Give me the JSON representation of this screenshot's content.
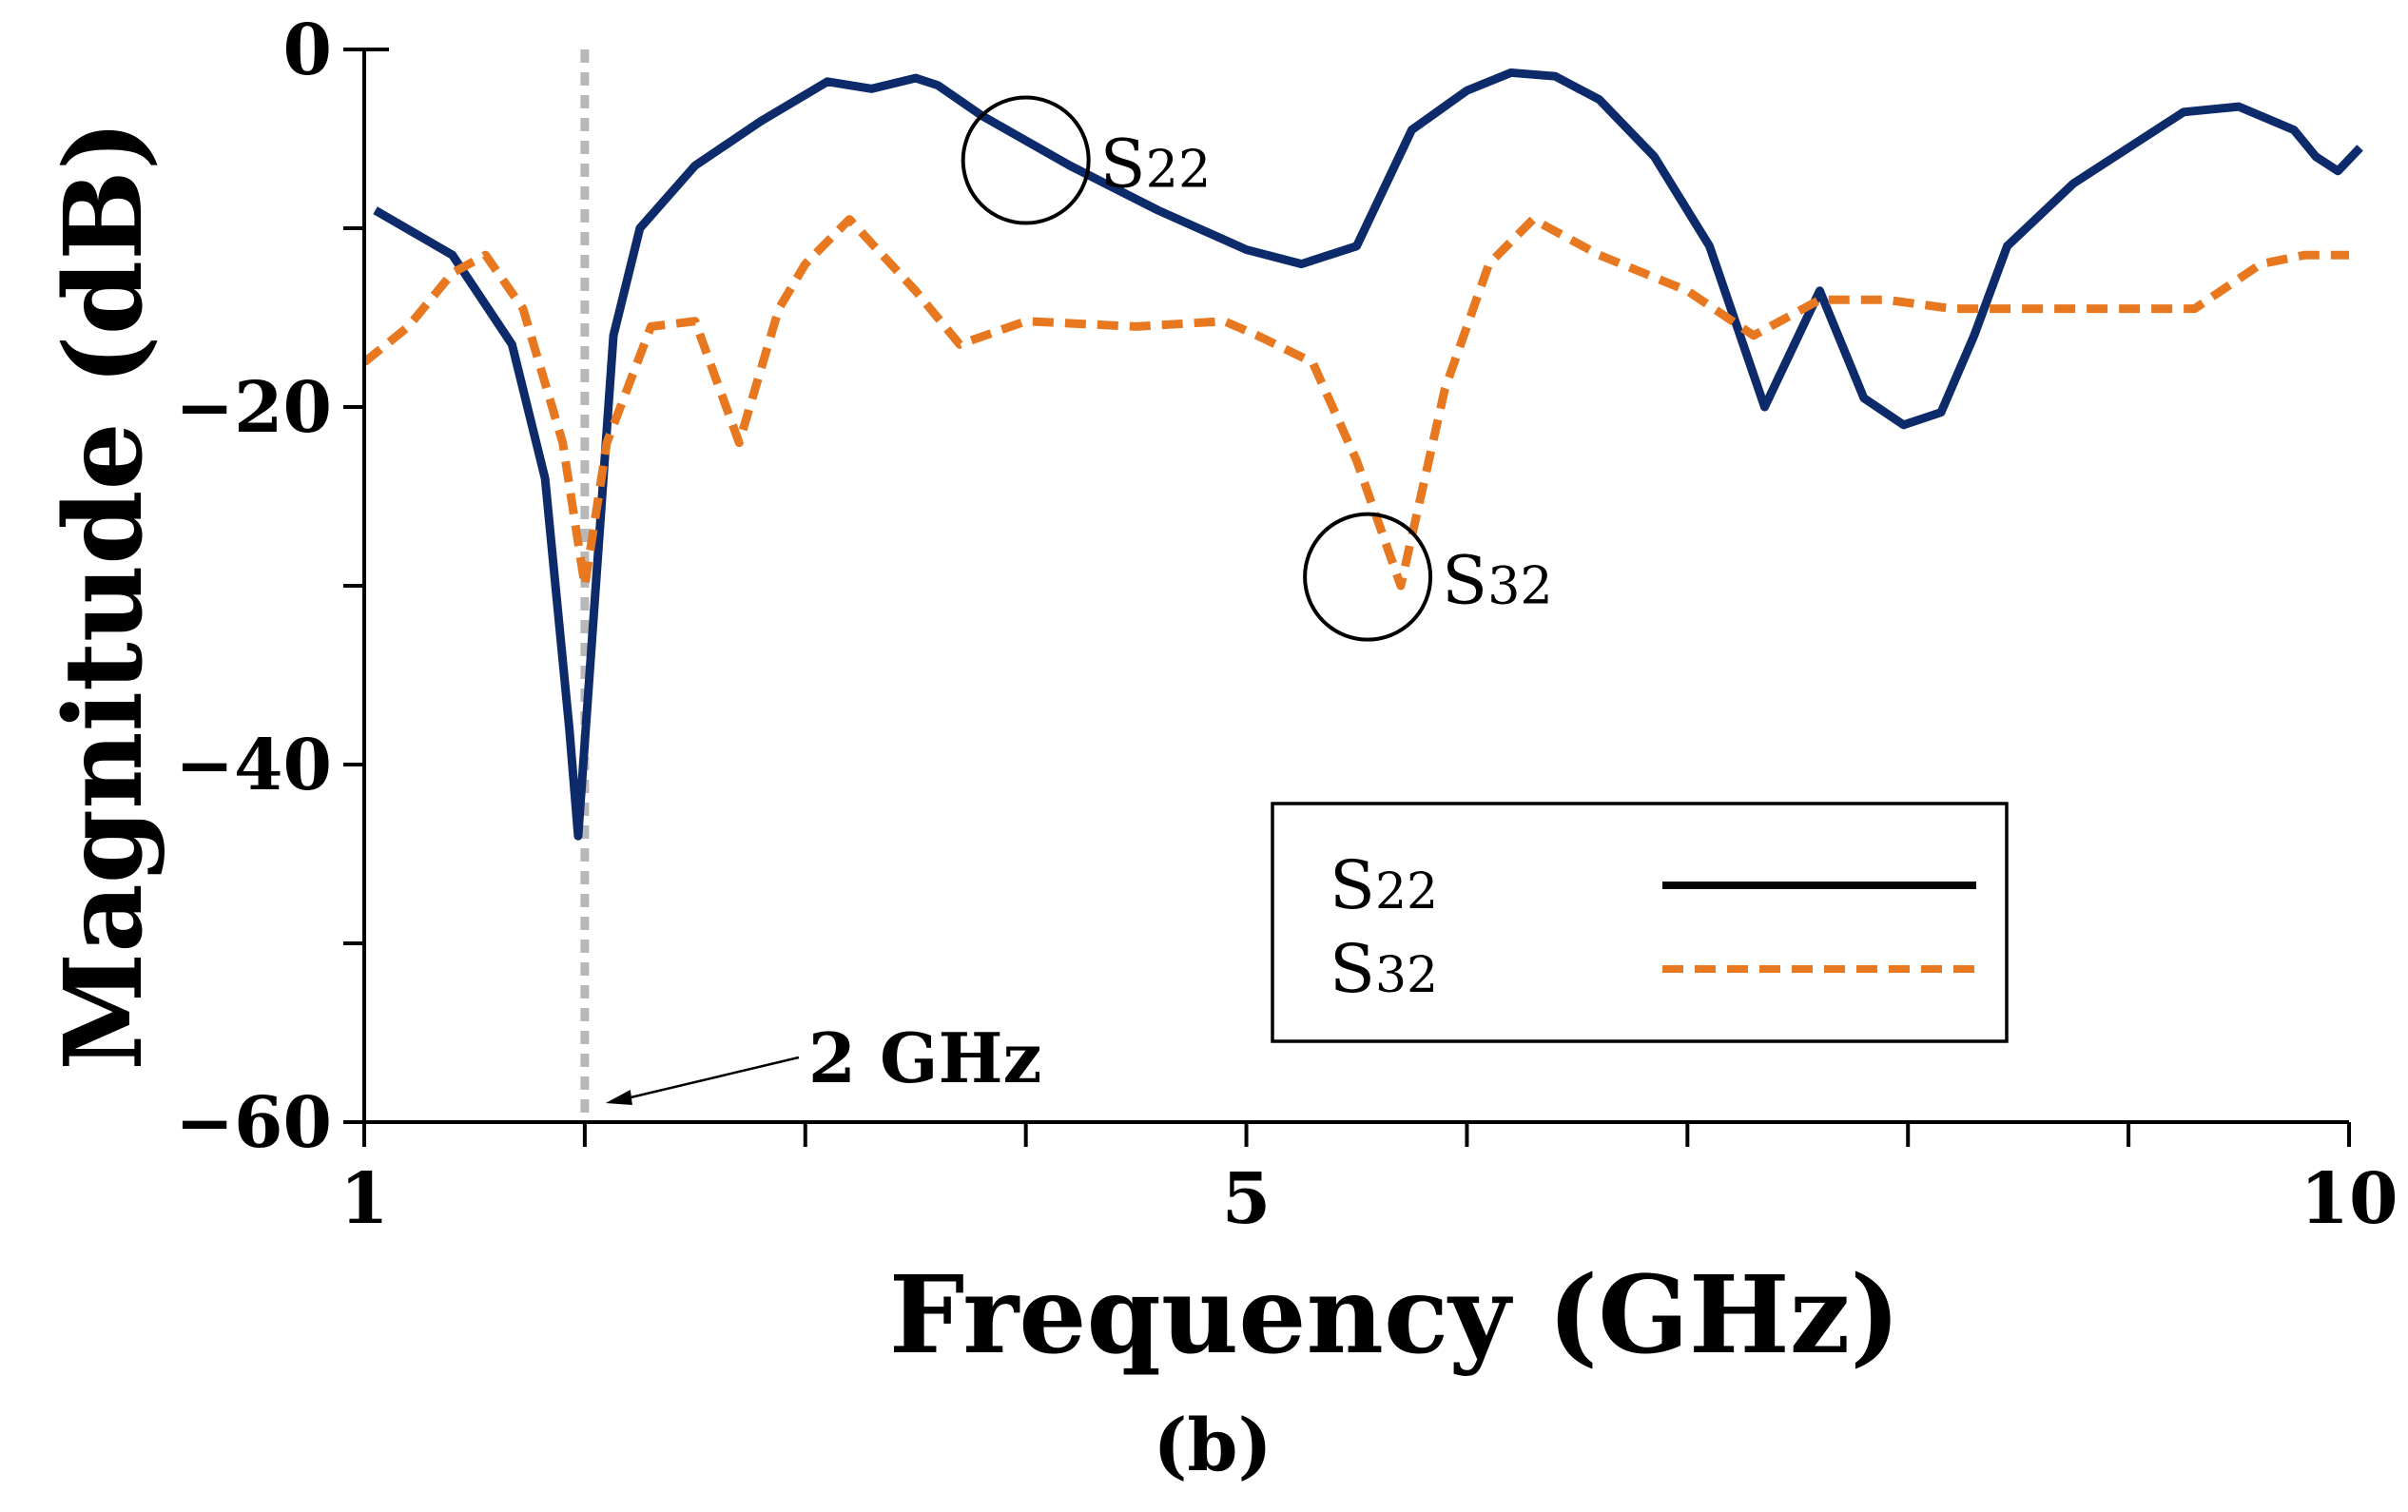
{
  "chart_data": {
    "type": "line",
    "xlabel": "Frequency (GHz)",
    "ylabel": "Magnitude (dB)",
    "sublabel": "(b)",
    "xlim": [
      1,
      10
    ],
    "ylim": [
      -60,
      0
    ],
    "x_ticks": [
      1,
      2,
      3,
      4,
      5,
      6,
      7,
      8,
      9,
      10
    ],
    "x_tick_labels": [
      {
        "value": 1,
        "label": "1"
      },
      {
        "value": 5,
        "label": "5"
      },
      {
        "value": 10,
        "label": "10"
      }
    ],
    "y_ticks": [
      0,
      -10,
      -20,
      -30,
      -40,
      -50,
      -60
    ],
    "y_tick_labels": [
      {
        "value": 0,
        "label": "0"
      },
      {
        "value": -20,
        "label": "−20"
      },
      {
        "value": -40,
        "label": "−40"
      },
      {
        "value": -60,
        "label": "−60"
      }
    ],
    "marker": {
      "x": 2,
      "label": "2 GHz",
      "color": "#b8b8b8"
    },
    "series": [
      {
        "name": "S22",
        "label_main": "S",
        "label_sub": "22",
        "color": "#0d2a6b",
        "legend_color": "#000000",
        "style": "solid",
        "x": [
          1.05,
          1.4,
          1.67,
          1.82,
          1.93,
          1.97,
          2.05,
          2.13,
          2.25,
          2.5,
          2.8,
          3.1,
          3.3,
          3.5,
          3.6,
          3.8,
          4.2,
          4.6,
          5.0,
          5.25,
          5.5,
          5.75,
          6.0,
          6.2,
          6.4,
          6.6,
          6.85,
          7.1,
          7.35,
          7.6,
          7.8,
          7.98,
          8.15,
          8.3,
          8.45,
          8.75,
          9.0,
          9.25,
          9.5,
          9.75,
          9.85,
          9.95,
          10.05
        ],
        "y": [
          -9,
          -11.5,
          -16.5,
          -24,
          -38,
          -44,
          -30,
          -16,
          -10,
          -6.5,
          -4,
          -1.8,
          -2.2,
          -1.6,
          -2,
          -3.7,
          -6.5,
          -9,
          -11.2,
          -12,
          -11,
          -4.5,
          -2.3,
          -1.3,
          -1.5,
          -2.8,
          -6,
          -11,
          -20,
          -13.5,
          -19.5,
          -21,
          -20.3,
          -16,
          -11,
          -7.5,
          -5.5,
          -3.5,
          -3.2,
          -4.5,
          -6,
          -6.8,
          -5.5
        ]
      },
      {
        "name": "S32",
        "label_main": "S",
        "label_sub": "32",
        "color": "#e87820",
        "legend_color": "#e87820",
        "style": "dashed",
        "x": [
          1.0,
          1.2,
          1.4,
          1.55,
          1.72,
          1.9,
          2.0,
          2.1,
          2.3,
          2.5,
          2.7,
          2.88,
          3.0,
          3.2,
          3.5,
          3.7,
          4.0,
          4.5,
          4.9,
          5.05,
          5.3,
          5.5,
          5.7,
          5.9,
          6.1,
          6.3,
          6.6,
          6.8,
          7.0,
          7.3,
          7.6,
          7.9,
          8.2,
          8.6,
          8.9,
          9.3,
          9.6,
          9.8,
          10.0
        ],
        "y": [
          -17.5,
          -15.5,
          -12.5,
          -11.5,
          -14.5,
          -22,
          -30,
          -22,
          -15.5,
          -15.2,
          -22,
          -14.5,
          -12,
          -9.5,
          -13.5,
          -16.5,
          -15.2,
          -15.5,
          -15.2,
          -16,
          -17.5,
          -23,
          -30,
          -19,
          -12,
          -9.5,
          -11.5,
          -12.5,
          -13.5,
          -16,
          -14,
          -14,
          -14.5,
          -14.5,
          -14.5,
          -14.5,
          -12,
          -11.5,
          -11.5
        ]
      }
    ],
    "annotations": [
      {
        "series": "S22",
        "x": 4.0,
        "y": -6.2,
        "main": "S",
        "sub": "22"
      },
      {
        "series": "S32",
        "x": 5.55,
        "y": -29.5,
        "main": "S",
        "sub": "32"
      }
    ],
    "legend": {
      "position": "bottom-right"
    }
  }
}
